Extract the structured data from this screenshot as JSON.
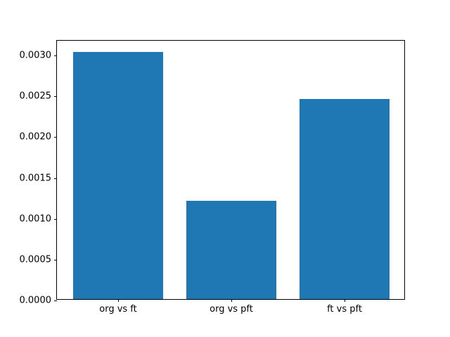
{
  "figure": {
    "background_color": "#ffffff",
    "spine_color": "#000000",
    "tick_label_color": "#000000"
  },
  "chart_data": {
    "type": "bar",
    "title": "",
    "xlabel": "",
    "ylabel": "",
    "categories": [
      "org vs ft",
      "org vs pft",
      "ft vs pft"
    ],
    "values": [
      0.00303,
      0.0012,
      0.00245
    ],
    "ylim": [
      0,
      0.00318
    ],
    "yticks": [
      0.0,
      0.0005,
      0.001,
      0.0015,
      0.002,
      0.0025,
      0.003
    ],
    "ytick_decimals": 4,
    "bar_color": "#1f77b4",
    "bar_width_fraction": 0.8,
    "x_margin_fraction": 0.05,
    "grid": false,
    "legend_position": "none"
  }
}
